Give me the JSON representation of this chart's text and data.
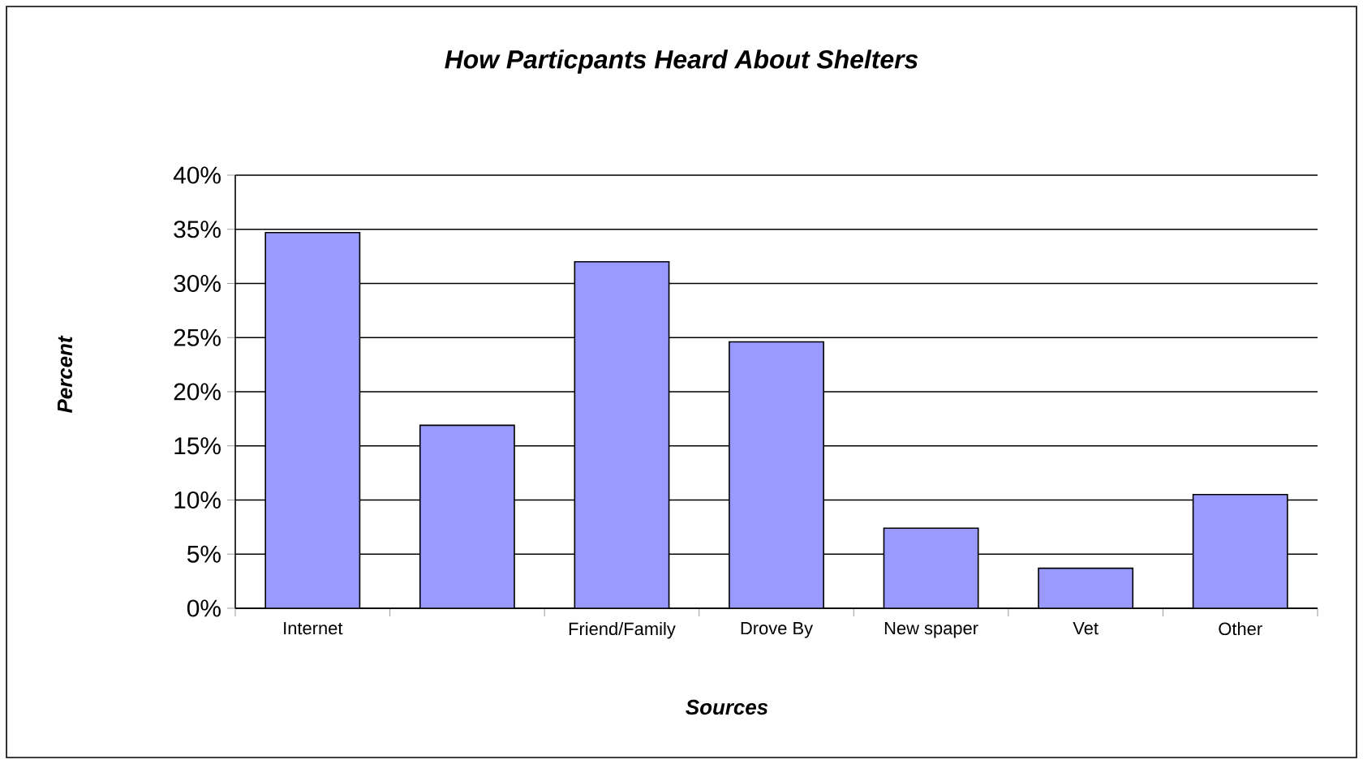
{
  "chart_data": {
    "type": "bar",
    "title": "How Particpants Heard About Shelters",
    "xlabel": "Sources",
    "ylabel": "Percent",
    "categories": [
      "Internet",
      null,
      "Friend/Family",
      "Drove By",
      "New spaper",
      "Vet",
      "Other"
    ],
    "values": [
      34.7,
      16.9,
      32.0,
      24.6,
      7.4,
      3.7,
      10.5
    ],
    "color": "#9999ff",
    "ylim": [
      0,
      40
    ],
    "yticks": [
      {
        "value": 0,
        "label": "0%"
      },
      {
        "value": 5,
        "label": "5%"
      },
      {
        "value": 10,
        "label": "10%"
      },
      {
        "value": 15,
        "label": "15%"
      },
      {
        "value": 20,
        "label": "20%"
      },
      {
        "value": 25,
        "label": "25%"
      },
      {
        "value": 30,
        "label": "30%"
      },
      {
        "value": 35,
        "label": "35%"
      },
      {
        "value": 40,
        "label": "40%"
      }
    ],
    "grid": "y"
  }
}
